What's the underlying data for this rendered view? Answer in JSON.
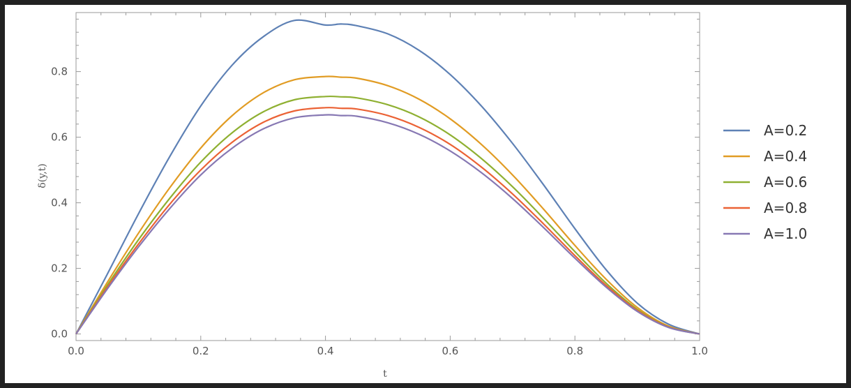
{
  "chart_data": {
    "type": "line",
    "title": "",
    "xlabel": "t",
    "ylabel": "δ(y,t)",
    "xlim": [
      0,
      1
    ],
    "ylim": [
      -0.02,
      0.98
    ],
    "x_ticks": [
      "0.0",
      "0.2",
      "0.4",
      "0.6",
      "0.8",
      "1.0"
    ],
    "y_ticks": [
      "0.0",
      "0.2",
      "0.4",
      "0.6",
      "0.8"
    ],
    "x_tick_values": [
      0,
      0.2,
      0.4,
      0.6,
      0.8,
      1.0
    ],
    "y_tick_values": [
      0,
      0.2,
      0.4,
      0.6,
      0.8
    ],
    "grid": false,
    "legend_position": "right",
    "x": [
      0,
      0.05,
      0.1,
      0.15,
      0.2,
      0.25,
      0.3,
      0.35,
      0.4,
      0.425,
      0.45,
      0.5,
      0.55,
      0.6,
      0.65,
      0.7,
      0.75,
      0.8,
      0.85,
      0.9,
      0.95,
      1.0
    ],
    "series": [
      {
        "name": "A=0.2",
        "color": "#5E81B5",
        "values": [
          0,
          0.182,
          0.366,
          0.54,
          0.695,
          0.819,
          0.906,
          0.956,
          0.942,
          0.945,
          0.94,
          0.915,
          0.865,
          0.791,
          0.695,
          0.581,
          0.454,
          0.321,
          0.196,
          0.094,
          0.03,
          0
        ]
      },
      {
        "name": "A=0.4",
        "color": "#E19C24",
        "values": [
          0,
          0.157,
          0.307,
          0.445,
          0.567,
          0.665,
          0.735,
          0.775,
          0.785,
          0.783,
          0.78,
          0.757,
          0.716,
          0.656,
          0.578,
          0.485,
          0.38,
          0.27,
          0.167,
          0.081,
          0.024,
          0
        ]
      },
      {
        "name": "A=0.6",
        "color": "#8FB032",
        "values": [
          0,
          0.148,
          0.287,
          0.413,
          0.524,
          0.613,
          0.677,
          0.714,
          0.724,
          0.723,
          0.72,
          0.699,
          0.662,
          0.607,
          0.535,
          0.449,
          0.352,
          0.251,
          0.155,
          0.075,
          0.022,
          0
        ]
      },
      {
        "name": "A=0.8",
        "color": "#EB6235",
        "values": [
          0,
          0.142,
          0.274,
          0.395,
          0.5,
          0.584,
          0.645,
          0.68,
          0.69,
          0.688,
          0.686,
          0.666,
          0.63,
          0.578,
          0.509,
          0.427,
          0.335,
          0.239,
          0.148,
          0.072,
          0.021,
          0
        ]
      },
      {
        "name": "A=1.0",
        "color": "#8778B3",
        "values": [
          0,
          0.137,
          0.265,
          0.382,
          0.485,
          0.566,
          0.625,
          0.659,
          0.668,
          0.666,
          0.664,
          0.644,
          0.609,
          0.558,
          0.492,
          0.413,
          0.324,
          0.231,
          0.143,
          0.069,
          0.02,
          0
        ]
      }
    ]
  }
}
